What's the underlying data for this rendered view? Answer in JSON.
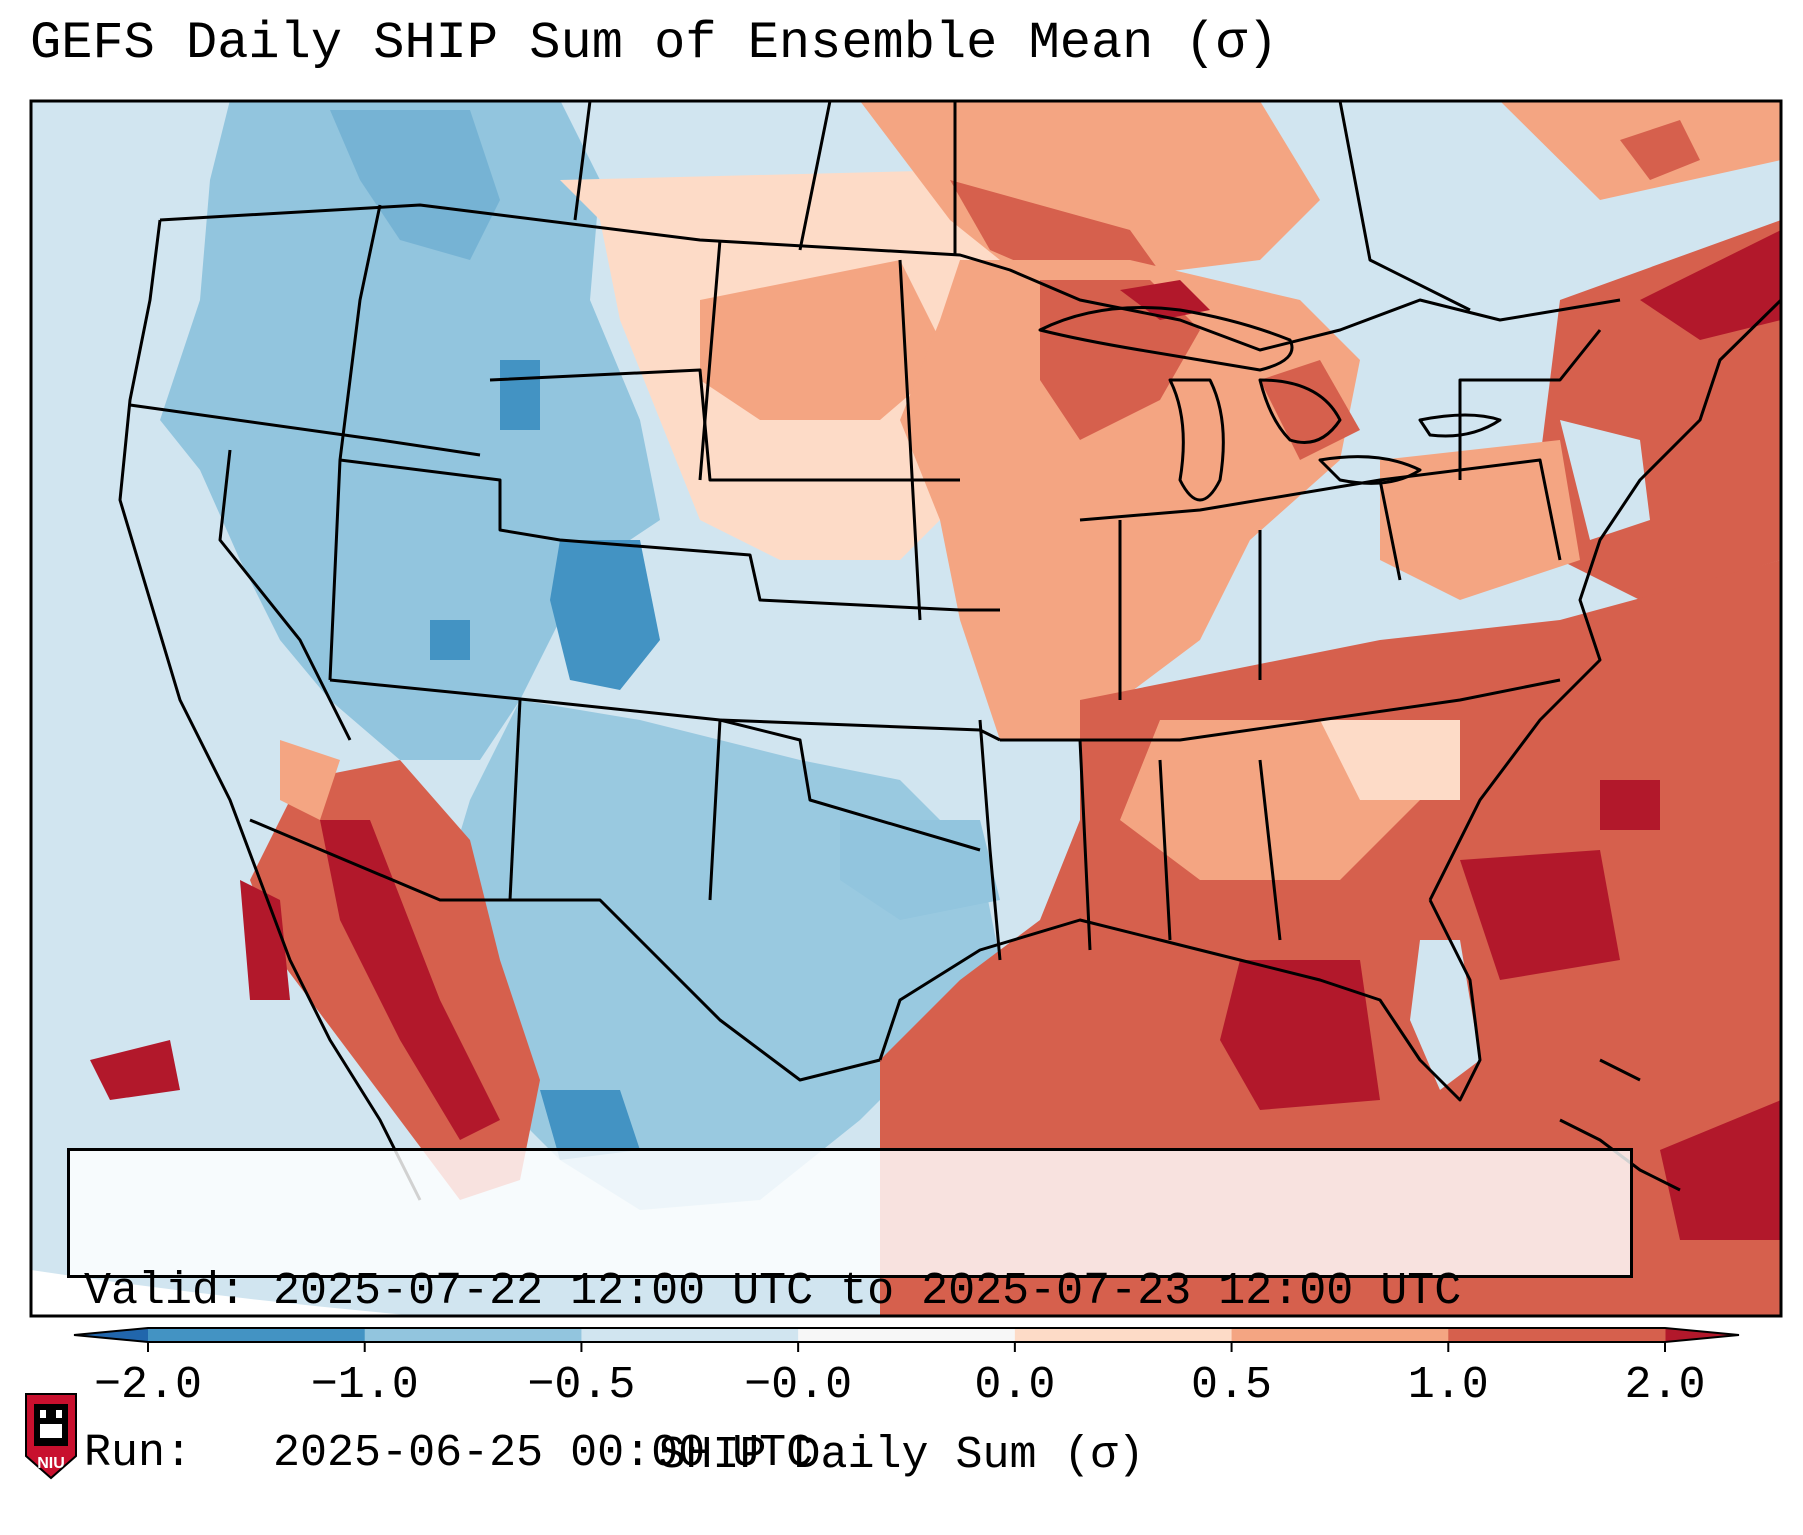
{
  "title": "GEFS Daily SHIP Sum of Ensemble Mean (σ)",
  "info": {
    "valid_label": "Valid:",
    "valid_value": "2025-07-22 12:00 UTC to 2025-07-23 12:00 UTC",
    "run_label": "Run:",
    "run_value": "2025-06-25 00:00 UTC"
  },
  "colorbar": {
    "label": "SHIP Daily Sum (σ)",
    "ticks": [
      "−2.0",
      "−1.0",
      "−0.5",
      "−0.0",
      "0.0",
      "0.5",
      "1.0",
      "2.0"
    ],
    "colors": [
      "#4393c3",
      "#92c5de",
      "#d1e5f0",
      "#f7f7f7",
      "#fddbc7",
      "#f4a582",
      "#d6604d"
    ],
    "extend_low_color": "#2166ac",
    "extend_high_color": "#b2182b"
  },
  "logo": {
    "text": "NIU",
    "color": "#c8102e"
  },
  "map": {
    "region": "Contiguous United States",
    "variable": "SHIP daily sum, ensemble mean anomaly"
  }
}
